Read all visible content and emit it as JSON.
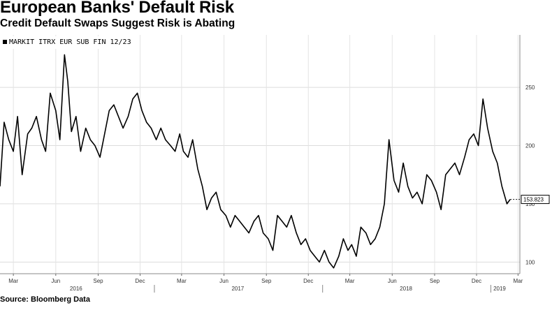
{
  "header": {
    "title": "European Banks' Default Risk",
    "subtitle": "Credit Default Swaps Suggest Risk is Abating"
  },
  "footer": {
    "source": "Source: Bloomberg Data"
  },
  "chart_data": {
    "type": "line",
    "title": "European Banks' Default Risk",
    "subtitle": "Credit Default Swaps Suggest Risk is Abating",
    "legend": {
      "placement": "top-left",
      "entries": [
        "MARKIT ITRX EUR SUB FIN 12/23"
      ]
    },
    "series": [
      {
        "name": "MARKIT ITRX EUR SUB FIN 12/23",
        "color": "#000000",
        "x": [
          "2016-02-01",
          "2016-02-10",
          "2016-02-20",
          "2016-03-01",
          "2016-03-10",
          "2016-03-20",
          "2016-04-01",
          "2016-04-10",
          "2016-04-20",
          "2016-05-01",
          "2016-05-10",
          "2016-05-20",
          "2016-06-01",
          "2016-06-10",
          "2016-06-20",
          "2016-06-27",
          "2016-07-05",
          "2016-07-15",
          "2016-07-25",
          "2016-08-05",
          "2016-08-15",
          "2016-08-25",
          "2016-09-05",
          "2016-09-15",
          "2016-09-25",
          "2016-10-05",
          "2016-10-15",
          "2016-10-25",
          "2016-11-05",
          "2016-11-15",
          "2016-11-25",
          "2016-12-05",
          "2016-12-15",
          "2016-12-25",
          "2017-01-05",
          "2017-01-15",
          "2017-01-25",
          "2017-02-05",
          "2017-02-15",
          "2017-02-25",
          "2017-03-05",
          "2017-03-15",
          "2017-03-25",
          "2017-04-05",
          "2017-04-15",
          "2017-04-25",
          "2017-05-05",
          "2017-05-15",
          "2017-05-25",
          "2017-06-05",
          "2017-06-15",
          "2017-06-25",
          "2017-07-05",
          "2017-07-15",
          "2017-07-25",
          "2017-08-05",
          "2017-08-15",
          "2017-08-25",
          "2017-09-05",
          "2017-09-15",
          "2017-09-25",
          "2017-10-05",
          "2017-10-15",
          "2017-10-25",
          "2017-11-05",
          "2017-11-15",
          "2017-11-25",
          "2017-12-05",
          "2017-12-15",
          "2017-12-25",
          "2018-01-05",
          "2018-01-15",
          "2018-01-25",
          "2018-02-05",
          "2018-02-15",
          "2018-02-25",
          "2018-03-05",
          "2018-03-15",
          "2018-03-25",
          "2018-04-05",
          "2018-04-15",
          "2018-04-25",
          "2018-05-05",
          "2018-05-15",
          "2018-05-25",
          "2018-06-05",
          "2018-06-15",
          "2018-06-25",
          "2018-07-05",
          "2018-07-15",
          "2018-07-25",
          "2018-08-05",
          "2018-08-15",
          "2018-08-25",
          "2018-09-05",
          "2018-09-15",
          "2018-09-25",
          "2018-10-05",
          "2018-10-15",
          "2018-10-25",
          "2018-11-05",
          "2018-11-15",
          "2018-11-25",
          "2018-12-05",
          "2018-12-15",
          "2018-12-25",
          "2019-01-05",
          "2019-01-15",
          "2019-01-25",
          "2019-02-05",
          "2019-02-12"
        ],
        "values": [
          165,
          220,
          205,
          195,
          225,
          175,
          210,
          215,
          225,
          205,
          195,
          245,
          230,
          205,
          278,
          255,
          212,
          225,
          195,
          215,
          205,
          200,
          190,
          210,
          230,
          235,
          225,
          215,
          225,
          240,
          245,
          230,
          220,
          215,
          205,
          215,
          205,
          200,
          195,
          210,
          195,
          190,
          205,
          180,
          165,
          145,
          155,
          160,
          145,
          140,
          130,
          140,
          135,
          130,
          125,
          135,
          140,
          125,
          120,
          110,
          140,
          135,
          130,
          140,
          125,
          115,
          120,
          110,
          105,
          100,
          110,
          100,
          95,
          105,
          120,
          110,
          115,
          105,
          130,
          125,
          115,
          120,
          130,
          150,
          205,
          170,
          160,
          185,
          165,
          155,
          160,
          150,
          175,
          170,
          160,
          145,
          175,
          180,
          185,
          175,
          190,
          205,
          210,
          200,
          240,
          215,
          195,
          185,
          165,
          150,
          153.8
        ]
      }
    ],
    "x_axis": {
      "months": [
        {
          "label": "Mar",
          "date": "2016-03-01"
        },
        {
          "label": "Jun",
          "date": "2016-06-01"
        },
        {
          "label": "Sep",
          "date": "2016-09-01"
        },
        {
          "label": "Dec",
          "date": "2016-12-01"
        },
        {
          "label": "Mar",
          "date": "2017-03-01"
        },
        {
          "label": "Jun",
          "date": "2017-06-01"
        },
        {
          "label": "Sep",
          "date": "2017-09-01"
        },
        {
          "label": "Dec",
          "date": "2017-12-01"
        },
        {
          "label": "Mar",
          "date": "2018-03-01"
        },
        {
          "label": "Jun",
          "date": "2018-06-01"
        },
        {
          "label": "Sep",
          "date": "2018-09-01"
        },
        {
          "label": "Dec",
          "date": "2018-12-01"
        },
        {
          "label": "Mar",
          "date": "2019-03-01"
        }
      ],
      "years": [
        {
          "label": "2016",
          "date": "2016-07-15"
        },
        {
          "label": "2017",
          "date": "2017-07-01"
        },
        {
          "label": "2018",
          "date": "2018-07-01"
        },
        {
          "label": "2019",
          "date": "2019-01-20"
        }
      ],
      "range": [
        "2016-02-01",
        "2019-03-05"
      ]
    },
    "y_axis": {
      "ticks": [
        100,
        150,
        200,
        250
      ],
      "range": [
        90,
        295
      ],
      "position": "right"
    },
    "grid": true,
    "last_value_label": "153.823"
  }
}
